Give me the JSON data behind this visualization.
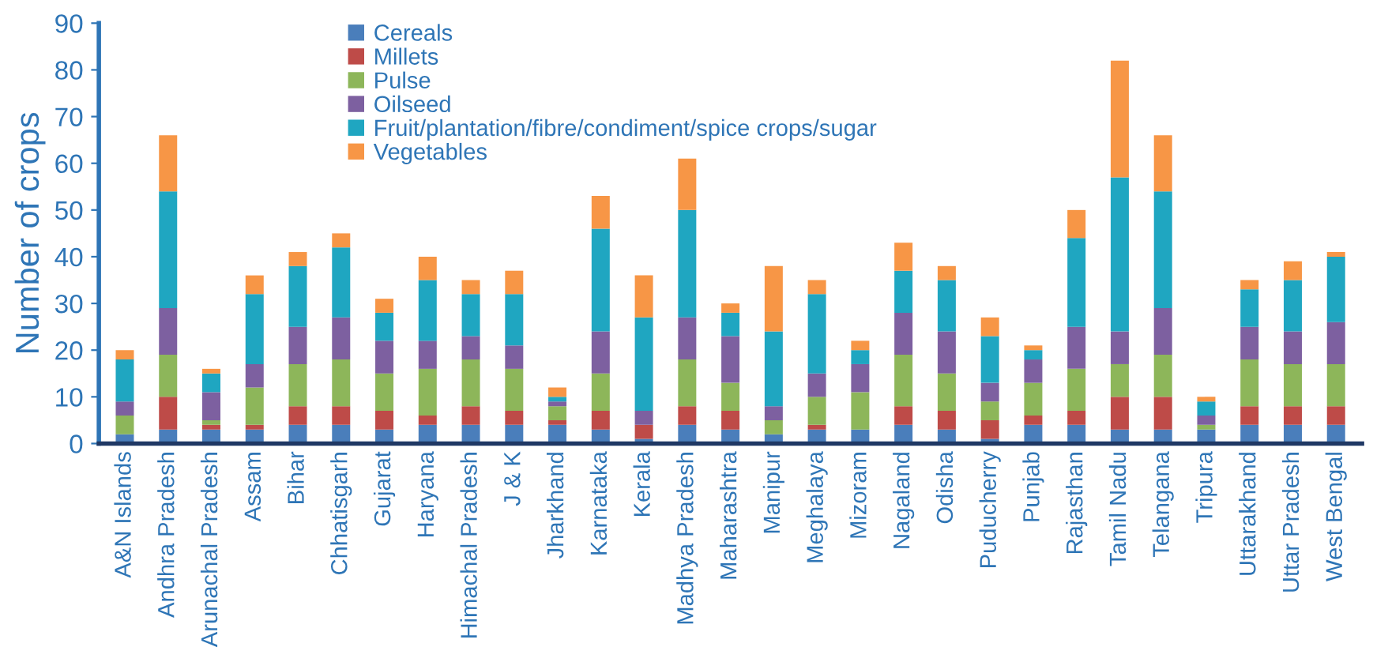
{
  "chart_data": {
    "type": "bar",
    "stacked": true,
    "ylabel": "Number of crops",
    "ylim": [
      0,
      90
    ],
    "yticks": [
      0,
      10,
      20,
      30,
      40,
      50,
      60,
      70,
      80,
      90
    ],
    "grid": false,
    "legend": "top left",
    "categories": [
      "A&N Islands",
      "Andhra Pradesh",
      "Arunachal Pradesh",
      "Assam",
      "Bihar",
      "Chhatisgarh",
      "Gujarat",
      "Haryana",
      "Himachal Pradesh",
      "J & K",
      "Jharkhand",
      "Karnataka",
      "Kerala",
      "Madhya Pradesh",
      "Maharashtra",
      "Manipur",
      "Meghalaya",
      "Mizoram",
      "Nagaland",
      "Odisha",
      "Puducherry",
      "Punjab",
      "Rajasthan",
      "Tamil Nadu",
      "Telangana",
      "Tripura",
      "Uttarakhand",
      "Uttar Pradesh",
      "West Bengal"
    ],
    "series": [
      {
        "name": "Cereals",
        "color": "#4a7ebb",
        "values": [
          2,
          3,
          3,
          3,
          4,
          4,
          3,
          4,
          4,
          4,
          4,
          3,
          1,
          4,
          3,
          2,
          3,
          3,
          4,
          3,
          1,
          4,
          4,
          3,
          3,
          3,
          4,
          4,
          4
        ]
      },
      {
        "name": "Millets",
        "color": "#be4b48",
        "values": [
          0,
          7,
          1,
          1,
          4,
          4,
          4,
          2,
          4,
          3,
          1,
          4,
          3,
          4,
          4,
          0,
          1,
          0,
          4,
          4,
          4,
          2,
          3,
          7,
          7,
          0,
          4,
          4,
          4
        ]
      },
      {
        "name": "Pulse",
        "color": "#8db65a",
        "values": [
          4,
          9,
          1,
          8,
          9,
          10,
          8,
          10,
          10,
          9,
          3,
          8,
          0,
          10,
          6,
          3,
          6,
          8,
          11,
          8,
          4,
          7,
          9,
          7,
          9,
          1,
          10,
          9,
          9
        ]
      },
      {
        "name": "Oilseed",
        "color": "#7d60a0",
        "values": [
          3,
          10,
          6,
          5,
          8,
          9,
          7,
          6,
          5,
          5,
          1,
          9,
          3,
          9,
          10,
          3,
          5,
          6,
          9,
          9,
          4,
          5,
          9,
          7,
          10,
          2,
          7,
          7,
          9
        ]
      },
      {
        "name": "Fruit/plantation/fibre/condiment/spice crops/sugar",
        "color": "#1fa6c1",
        "values": [
          9,
          25,
          4,
          15,
          13,
          15,
          6,
          13,
          9,
          11,
          1,
          22,
          20,
          23,
          5,
          16,
          17,
          3,
          9,
          11,
          10,
          2,
          19,
          33,
          25,
          3,
          8,
          11,
          14
        ]
      },
      {
        "name": "Vegetables",
        "color": "#f79646",
        "values": [
          2,
          12,
          1,
          4,
          3,
          3,
          3,
          5,
          3,
          5,
          2,
          7,
          9,
          11,
          2,
          14,
          3,
          2,
          6,
          3,
          4,
          1,
          6,
          25,
          12,
          1,
          2,
          4,
          1
        ]
      }
    ]
  }
}
